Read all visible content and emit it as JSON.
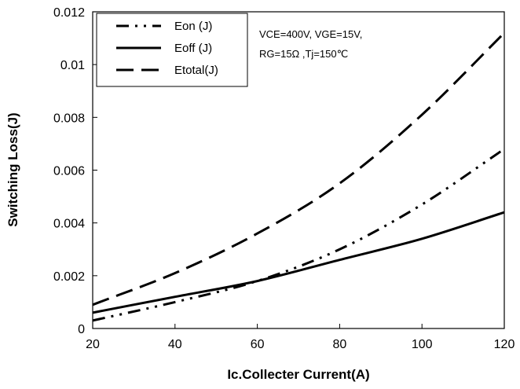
{
  "chart_data": {
    "type": "line",
    "xlabel": "Ic.Collecter Current(A)",
    "ylabel": "Switching Loss(J)",
    "xlim": [
      20,
      120
    ],
    "ylim": [
      0,
      0.012
    ],
    "x_ticks": [
      "20",
      "40",
      "60",
      "80",
      "100",
      "120"
    ],
    "y_ticks": [
      "0",
      "0.002",
      "0.004",
      "0.006",
      "0.008",
      "0.01",
      "0.012"
    ],
    "grid": false,
    "legend_position": "top-left",
    "annotations": [
      "VCE=400V, VGE=15V,",
      "RG=15Ω ,Tj=150℃"
    ],
    "series": [
      {
        "name": "Eon (J)",
        "style": "dash-dot-dot",
        "x": [
          20,
          40,
          60,
          80,
          100,
          120
        ],
        "values": [
          0.0003,
          0.001,
          0.0018,
          0.003,
          0.0047,
          0.0068
        ]
      },
      {
        "name": "Eoff (J)",
        "style": "solid",
        "x": [
          20,
          40,
          60,
          80,
          100,
          120
        ],
        "values": [
          0.0006,
          0.0012,
          0.0018,
          0.0026,
          0.0034,
          0.0044
        ]
      },
      {
        "name": "Etotal(J)",
        "style": "dashed",
        "x": [
          20,
          40,
          60,
          80,
          100,
          120
        ],
        "values": [
          0.0009,
          0.0021,
          0.0036,
          0.0055,
          0.0081,
          0.0112
        ]
      }
    ]
  }
}
